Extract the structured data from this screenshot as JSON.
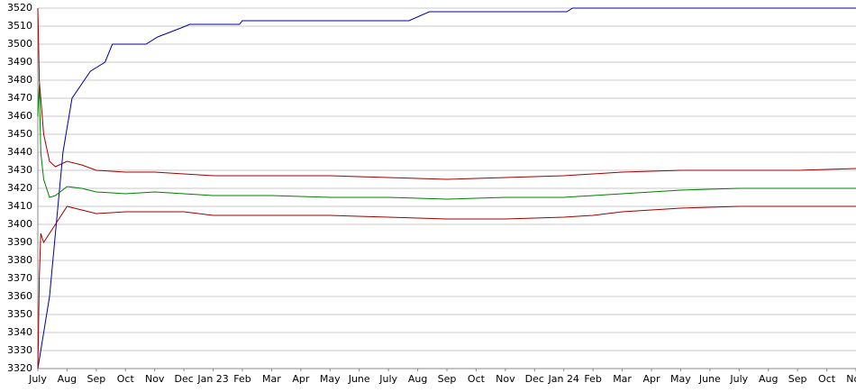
{
  "chart_data": {
    "type": "line",
    "xlim": [
      0,
      28
    ],
    "ylim": [
      3320,
      3520
    ],
    "yticks": [
      3320,
      3330,
      3340,
      3350,
      3360,
      3370,
      3380,
      3390,
      3400,
      3410,
      3420,
      3430,
      3440,
      3450,
      3460,
      3470,
      3480,
      3490,
      3500,
      3510,
      3520
    ],
    "xticks": [
      {
        "value": 0,
        "label": "July"
      },
      {
        "value": 1,
        "label": "Aug"
      },
      {
        "value": 2,
        "label": "Sep"
      },
      {
        "value": 3,
        "label": "Oct"
      },
      {
        "value": 4,
        "label": "Nov"
      },
      {
        "value": 5,
        "label": "Dec"
      },
      {
        "value": 6,
        "label": "Jan 23"
      },
      {
        "value": 7,
        "label": "Feb"
      },
      {
        "value": 8,
        "label": "Mar"
      },
      {
        "value": 9,
        "label": "Apr"
      },
      {
        "value": 10,
        "label": "May"
      },
      {
        "value": 11,
        "label": "June"
      },
      {
        "value": 12,
        "label": "July"
      },
      {
        "value": 13,
        "label": "Aug"
      },
      {
        "value": 14,
        "label": "Sep"
      },
      {
        "value": 15,
        "label": "Oct"
      },
      {
        "value": 16,
        "label": "Nov"
      },
      {
        "value": 17,
        "label": "Dec"
      },
      {
        "value": 18,
        "label": "Jan 24"
      },
      {
        "value": 19,
        "label": "Feb"
      },
      {
        "value": 20,
        "label": "Mar"
      },
      {
        "value": 21,
        "label": "Apr"
      },
      {
        "value": 22,
        "label": "May"
      },
      {
        "value": 23,
        "label": "June"
      },
      {
        "value": 24,
        "label": "July"
      },
      {
        "value": 25,
        "label": "Aug"
      },
      {
        "value": 26,
        "label": "Sep"
      },
      {
        "value": 27,
        "label": "Oct"
      },
      {
        "value": 28,
        "label": "Nov"
      }
    ],
    "grid": true,
    "series": [
      {
        "color": "#0000a0",
        "x": [
          0,
          0.4,
          0.86,
          1.17,
          1.8,
          2.3,
          2.55,
          3.7,
          4.1,
          4.9,
          5.2,
          6.9,
          7.0,
          12.7,
          13.4,
          18.1,
          18.3,
          28
        ],
        "values": [
          3320,
          3360,
          3440,
          3470,
          3485,
          3490,
          3500,
          3500,
          3504,
          3509,
          3511,
          3511,
          3513,
          3513,
          3518,
          3518,
          3520,
          3520
        ]
      },
      {
        "color": "#a00000",
        "x": [
          0,
          0.05,
          0.2,
          0.4,
          0.6,
          1,
          1.5,
          2,
          3,
          4,
          5,
          6,
          8,
          10,
          12,
          14,
          16,
          18,
          19,
          20,
          22,
          24,
          26,
          28
        ],
        "values": [
          3520,
          3480,
          3450,
          3435,
          3432,
          3435,
          3433,
          3430,
          3429,
          3429,
          3428,
          3427,
          3427,
          3427,
          3426,
          3425,
          3426,
          3427,
          3428,
          3429,
          3430,
          3430,
          3430,
          3431
        ]
      },
      {
        "color": "#008000",
        "x": [
          0,
          0.05,
          0.1,
          0.2,
          0.4,
          0.6,
          1,
          1.5,
          2,
          3,
          4,
          5,
          6,
          8,
          10,
          12,
          14,
          16,
          18,
          19,
          20,
          22,
          24,
          26,
          28
        ],
        "values": [
          3460,
          3478,
          3440,
          3425,
          3415,
          3416,
          3421,
          3420,
          3418,
          3417,
          3418,
          3417,
          3416,
          3416,
          3415,
          3415,
          3414,
          3415,
          3415,
          3416,
          3417,
          3419,
          3420,
          3420,
          3420
        ]
      },
      {
        "color": "#a00000",
        "x": [
          0,
          0.05,
          0.1,
          0.2,
          0.4,
          0.6,
          1,
          1.5,
          2,
          3,
          4,
          5,
          6,
          8,
          10,
          12,
          14,
          16,
          18,
          19,
          20,
          22,
          24,
          26,
          28
        ],
        "values": [
          3320,
          3370,
          3395,
          3390,
          3395,
          3400,
          3410,
          3408,
          3406,
          3407,
          3407,
          3407,
          3405,
          3405,
          3405,
          3404,
          3403,
          3403,
          3404,
          3405,
          3407,
          3409,
          3410,
          3410,
          3410
        ]
      }
    ]
  }
}
